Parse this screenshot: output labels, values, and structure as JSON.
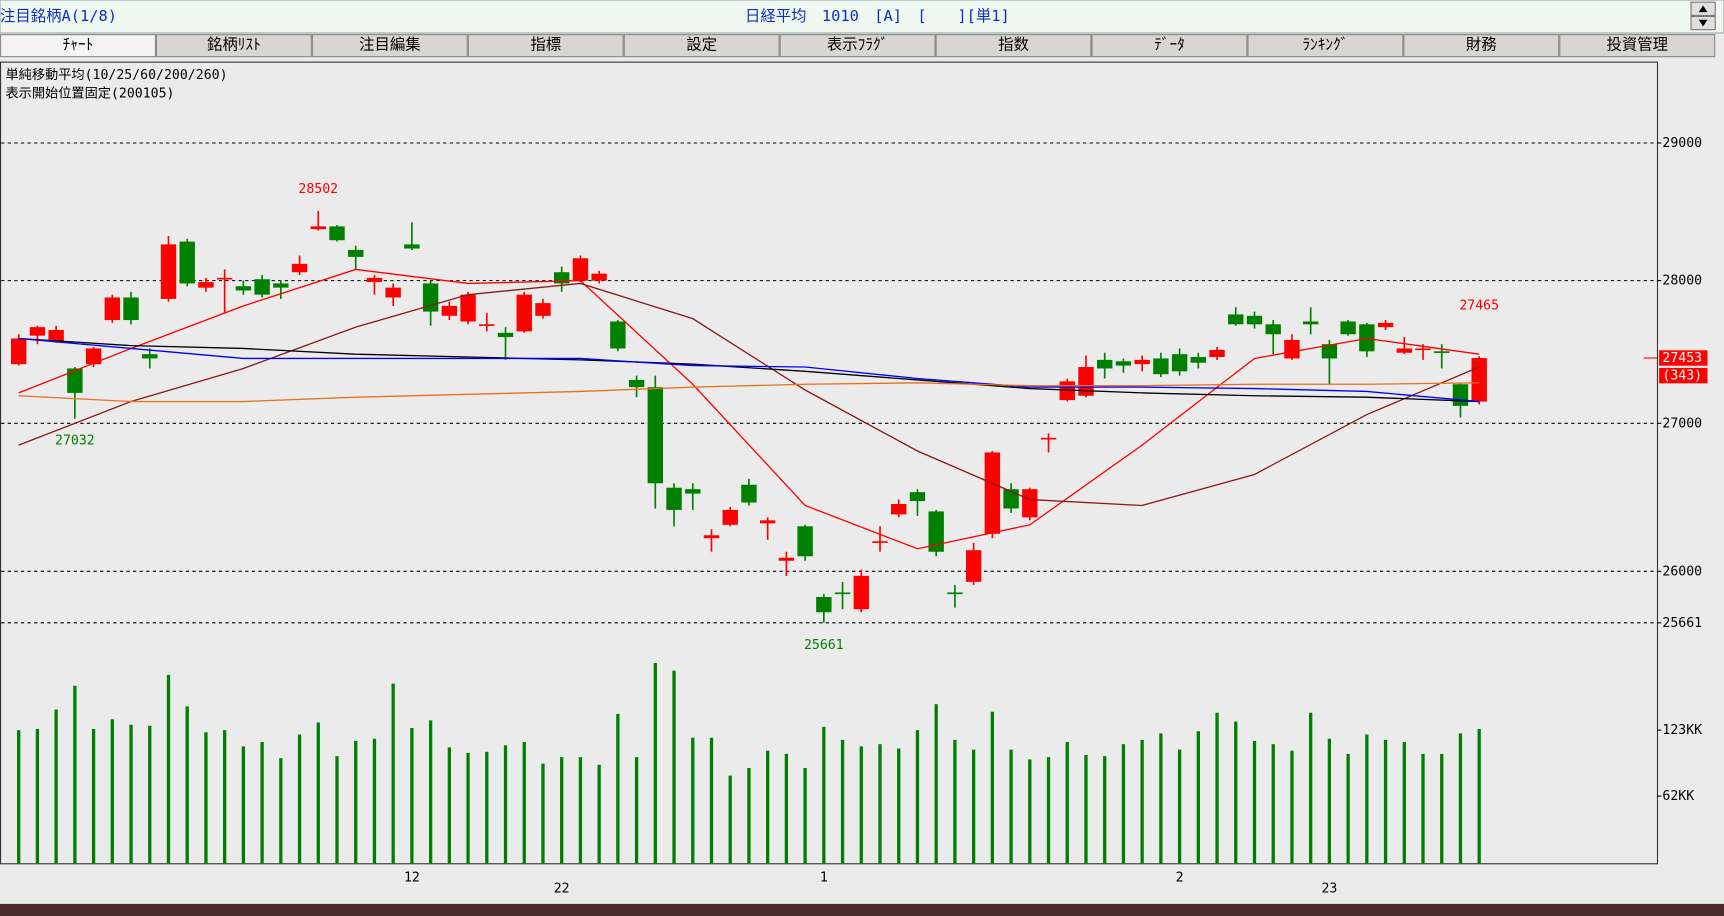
{
  "header": {
    "left": "注目銘柄A(1/8)",
    "center": "日経平均　1010　[A]　[　　][単1]"
  },
  "tabs": [
    "ﾁｬｰﾄ",
    "銘柄ﾘｽﾄ",
    "注目編集",
    "指標",
    "設定",
    "表示ﾌﾗｸﾞ",
    "指数",
    "ﾃﾞｰﾀ",
    "ﾗﾝｷﾝｸﾞ",
    "財務",
    "投資管理"
  ],
  "chart_data": {
    "type": "candlestick",
    "title": "単純移動平均(10/25/60/200/260)",
    "subtitle": "表示開始位置固定(200105)",
    "categories": [
      null,
      null,
      null,
      null,
      null,
      null,
      null,
      null,
      null,
      null,
      null,
      null,
      null,
      null,
      null,
      null,
      null,
      null,
      null,
      null,
      null,
      "12",
      null,
      null,
      null,
      null,
      null,
      null,
      null,
      null,
      null,
      null,
      null,
      null,
      null,
      null,
      null,
      null,
      null,
      null,
      null,
      null,
      null,
      "1",
      null,
      null,
      null,
      null,
      null,
      null,
      null,
      null,
      null,
      null,
      null,
      null,
      null,
      null,
      null,
      null,
      null,
      null,
      "2",
      null,
      null,
      null,
      null,
      null,
      null,
      null,
      null,
      null,
      null,
      null,
      null,
      null,
      null,
      null,
      null
    ],
    "x_years": [
      null,
      null,
      null,
      null,
      null,
      null,
      null,
      null,
      null,
      null,
      null,
      null,
      null,
      null,
      null,
      null,
      null,
      null,
      null,
      null,
      null,
      null,
      null,
      null,
      null,
      null,
      null,
      null,
      null,
      "22",
      null,
      null,
      null,
      null,
      null,
      null,
      null,
      null,
      null,
      null,
      null,
      null,
      null,
      null,
      null,
      null,
      null,
      null,
      null,
      null,
      null,
      null,
      null,
      null,
      null,
      null,
      null,
      null,
      null,
      null,
      null,
      null,
      null,
      null,
      null,
      null,
      null,
      null,
      null,
      null,
      "23",
      null,
      null,
      null,
      null,
      null,
      null,
      null,
      null
    ],
    "open": [
      27410,
      27610,
      27570,
      27380,
      27410,
      27720,
      27880,
      27480,
      27870,
      28280,
      27950,
      28010,
      27960,
      28010,
      27980,
      28060,
      28370,
      28390,
      28220,
      27990,
      27880,
      28260,
      27980,
      27750,
      27710,
      27680,
      27630,
      27640,
      27750,
      28060,
      28000,
      28000,
      27710,
      27300,
      27250,
      26560,
      26550,
      26220,
      26310,
      26580,
      26320,
      26070,
      26300,
      25830,
      25860,
      25750,
      26190,
      26380,
      26530,
      26400,
      25860,
      25930,
      26250,
      26550,
      26360,
      26890,
      27160,
      27190,
      27440,
      27430,
      27410,
      27450,
      27480,
      27460,
      27460,
      27760,
      27750,
      27690,
      27450,
      27710,
      27550,
      27710,
      27690,
      27670,
      27490,
      27510,
      27500,
      27270,
      27150
    ],
    "high": [
      27620,
      27680,
      27680,
      27390,
      27530,
      27900,
      27920,
      27520,
      28320,
      28300,
      28020,
      28080,
      28000,
      28040,
      28000,
      28180,
      28502,
      28400,
      28250,
      28040,
      27980,
      28420,
      28000,
      27850,
      27920,
      27770,
      27670,
      27920,
      27870,
      28100,
      28180,
      28070,
      27720,
      27330,
      27330,
      26590,
      26590,
      26280,
      26430,
      26620,
      26360,
      26130,
      26310,
      25850,
      25930,
      26010,
      26300,
      26480,
      26550,
      26410,
      25910,
      26190,
      26810,
      26590,
      26560,
      26930,
      27310,
      27470,
      27490,
      27450,
      27470,
      27490,
      27520,
      27490,
      27530,
      27810,
      27780,
      27720,
      27620,
      27810,
      27580,
      27720,
      27700,
      27720,
      27600,
      27550,
      27550,
      27280,
      27465
    ],
    "low": [
      27400,
      27550,
      27560,
      27032,
      27390,
      27700,
      27690,
      27380,
      27850,
      27960,
      27920,
      27770,
      27900,
      27880,
      27870,
      28040,
      28360,
      28280,
      28080,
      27900,
      27820,
      28220,
      27680,
      27720,
      27690,
      27640,
      27440,
      27630,
      27730,
      27920,
      27990,
      27980,
      27500,
      27180,
      26420,
      26300,
      26410,
      26130,
      26300,
      26440,
      26210,
      25970,
      26070,
      25661,
      25750,
      25730,
      26130,
      26360,
      26370,
      26100,
      25760,
      25910,
      26220,
      26390,
      26340,
      26800,
      27150,
      27180,
      27310,
      27350,
      27360,
      27320,
      27330,
      27380,
      27440,
      27680,
      27660,
      27480,
      27440,
      27620,
      27270,
      27610,
      27460,
      27650,
      27480,
      27440,
      27380,
      27040,
      27130
    ],
    "close": [
      27590,
      27670,
      27650,
      27210,
      27520,
      27880,
      27720,
      27450,
      28260,
      27980,
      27990,
      28020,
      27930,
      27900,
      27950,
      28120,
      28390,
      28290,
      28170,
      28020,
      27950,
      28230,
      27780,
      27820,
      27900,
      27690,
      27600,
      27900,
      27840,
      27980,
      28160,
      28050,
      27520,
      27250,
      26590,
      26410,
      26520,
      26240,
      26410,
      26460,
      26340,
      26090,
      26100,
      25730,
      25850,
      25970,
      26200,
      26450,
      26470,
      26130,
      25850,
      26140,
      26800,
      26420,
      26550,
      26900,
      27290,
      27390,
      27380,
      27400,
      27440,
      27340,
      27360,
      27420,
      27510,
      27690,
      27690,
      27620,
      27580,
      27690,
      27450,
      27620,
      27500,
      27700,
      27520,
      27520,
      27490,
      27120,
      27453
    ],
    "up_color": "#ff0000",
    "down_color": "#008000",
    "log_scale": true,
    "ylim": [
      25420,
      29600
    ],
    "yticks": [
      25661,
      26000,
      27000,
      28000,
      29000
    ],
    "grid": true,
    "last_change": "(343)",
    "moving_averages": [
      {
        "color": "#ff0000",
        "x": [
          0,
          6,
          12,
          18,
          24,
          30,
          36,
          42,
          48,
          54,
          60,
          66,
          72,
          78
        ],
        "values": [
          27210,
          27520,
          27820,
          28080,
          27980,
          28000,
          27270,
          26440,
          26150,
          26310,
          26850,
          27450,
          27590,
          27480
        ]
      },
      {
        "color": "#8b1a1a",
        "x": [
          0,
          6,
          12,
          18,
          24,
          30,
          36,
          42,
          48,
          54,
          60,
          66,
          72,
          78
        ],
        "values": [
          26850,
          27150,
          27380,
          27670,
          27900,
          27980,
          27730,
          27230,
          26810,
          26480,
          26440,
          26650,
          27060,
          27390
        ]
      },
      {
        "color": "#000000",
        "x": [
          0,
          6,
          12,
          18,
          24,
          30,
          36,
          42,
          48,
          54,
          60,
          66,
          72,
          78
        ],
        "values": [
          27590,
          27540,
          27520,
          27480,
          27460,
          27440,
          27410,
          27360,
          27300,
          27240,
          27210,
          27190,
          27180,
          27150
        ]
      },
      {
        "color": "#0000ff",
        "x": [
          0,
          6,
          12,
          18,
          24,
          30,
          36,
          42,
          48,
          54,
          60,
          66,
          72,
          78
        ],
        "values": [
          27590,
          27520,
          27450,
          27450,
          27450,
          27450,
          27400,
          27390,
          27310,
          27250,
          27250,
          27240,
          27220,
          27150
        ]
      },
      {
        "color": "#e8701e",
        "x": [
          0,
          6,
          12,
          18,
          24,
          30,
          36,
          42,
          48,
          54,
          60,
          66,
          72,
          78
        ],
        "values": [
          27190,
          27150,
          27150,
          27180,
          27200,
          27220,
          27250,
          27270,
          27280,
          27260,
          27260,
          27270,
          27270,
          27280
        ]
      }
    ],
    "volume": {
      "color": "#008000",
      "ylim": [
        0,
        188
      ],
      "yticks": [
        {
          "value": 62,
          "label": "62KK"
        },
        {
          "value": 123,
          "label": "123KK"
        }
      ],
      "values": [
        123,
        124,
        142,
        164,
        124,
        133,
        128,
        127,
        174,
        145,
        121,
        123,
        108,
        112,
        97,
        119,
        130,
        99,
        113,
        115,
        166,
        125,
        132,
        107,
        102,
        103,
        109,
        112,
        92,
        98,
        98,
        91,
        138,
        98,
        185,
        178,
        116,
        116,
        81,
        88,
        104,
        101,
        88,
        126,
        114,
        108,
        110,
        106,
        123,
        147,
        114,
        105,
        140,
        105,
        96,
        98,
        112,
        100,
        99,
        110,
        114,
        120,
        105,
        122,
        139,
        131,
        113,
        110,
        104,
        139,
        115,
        101,
        119,
        114,
        112,
        101,
        101,
        120,
        124
      ]
    }
  }
}
